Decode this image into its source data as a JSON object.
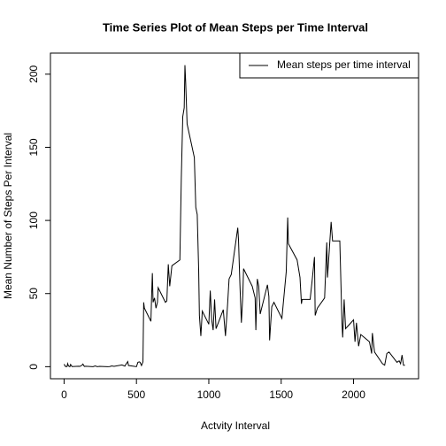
{
  "chart_data": {
    "type": "line",
    "title": "Time Series Plot of Mean Steps per Time Interval",
    "xlabel": "Actvity Interval",
    "ylabel": "Mean Number of Steps Per Interval",
    "x": [
      0,
      10,
      20,
      25,
      30,
      40,
      45,
      55,
      100,
      110,
      125,
      130,
      140,
      150,
      200,
      215,
      230,
      245,
      300,
      315,
      330,
      345,
      400,
      420,
      425,
      440,
      445,
      500,
      510,
      520,
      525,
      535,
      545,
      550,
      555,
      600,
      605,
      610,
      615,
      625,
      635,
      645,
      650,
      700,
      710,
      720,
      730,
      745,
      800,
      810,
      820,
      830,
      835,
      840,
      850,
      900,
      910,
      920,
      930,
      935,
      945,
      955,
      1000,
      1010,
      1020,
      1030,
      1040,
      1050,
      1100,
      1115,
      1130,
      1140,
      1155,
      1200,
      1205,
      1215,
      1225,
      1235,
      1240,
      1300,
      1320,
      1325,
      1335,
      1345,
      1355,
      1405,
      1415,
      1420,
      1435,
      1450,
      1505,
      1520,
      1535,
      1545,
      1550,
      1610,
      1630,
      1640,
      1645,
      1700,
      1715,
      1730,
      1735,
      1750,
      1800,
      1815,
      1820,
      1845,
      1855,
      1905,
      1920,
      1925,
      1935,
      1945,
      2000,
      2010,
      2020,
      2035,
      2050,
      2110,
      2125,
      2130,
      2145,
      2200,
      2215,
      2230,
      2245,
      2300,
      2315,
      2325,
      2335,
      2345,
      2355
    ],
    "series": [
      {
        "name": "Mean steps per time interval",
        "color": "#000000",
        "values": [
          1.7,
          0.1,
          0.1,
          2.1,
          0.5,
          0,
          1.5,
          0.1,
          0.3,
          0.2,
          1.1,
          1.8,
          0.2,
          0.3,
          0,
          0.5,
          0,
          0.2,
          0,
          0.1,
          0.5,
          0.2,
          1.2,
          0.4,
          1.3,
          3.5,
          0.8,
          0,
          3,
          3.3,
          3,
          0.8,
          3.3,
          44,
          40,
          31,
          49,
          64,
          44,
          47,
          40,
          44,
          54,
          44,
          45,
          70,
          55,
          69,
          73,
          129,
          171,
          177,
          206.2,
          195,
          166,
          143,
          109,
          104,
          66,
          35,
          21,
          38,
          29,
          52,
          32,
          25,
          46,
          26,
          39,
          21,
          43,
          60,
          63,
          95,
          87,
          56,
          30,
          49,
          67,
          55,
          47,
          25,
          60,
          55,
          36,
          56,
          48,
          18,
          41,
          44,
          33,
          49,
          65,
          102,
          84,
          73,
          61,
          43,
          46,
          46,
          60,
          75,
          35,
          40,
          47,
          85,
          61,
          99,
          86,
          86,
          30,
          20,
          46,
          26,
          32,
          17,
          30,
          14,
          22,
          17,
          9,
          23,
          10,
          2,
          1,
          9,
          10,
          3,
          4,
          2,
          8,
          1,
          1
        ]
      }
    ],
    "xlim": [
      -94.2,
      2449.2
    ],
    "ylim": [
      -8.25,
      214.42
    ],
    "xticks": [
      0,
      500,
      1000,
      1500,
      2000
    ],
    "yticks": [
      0,
      50,
      100,
      150,
      200
    ],
    "legend": "top-right"
  }
}
